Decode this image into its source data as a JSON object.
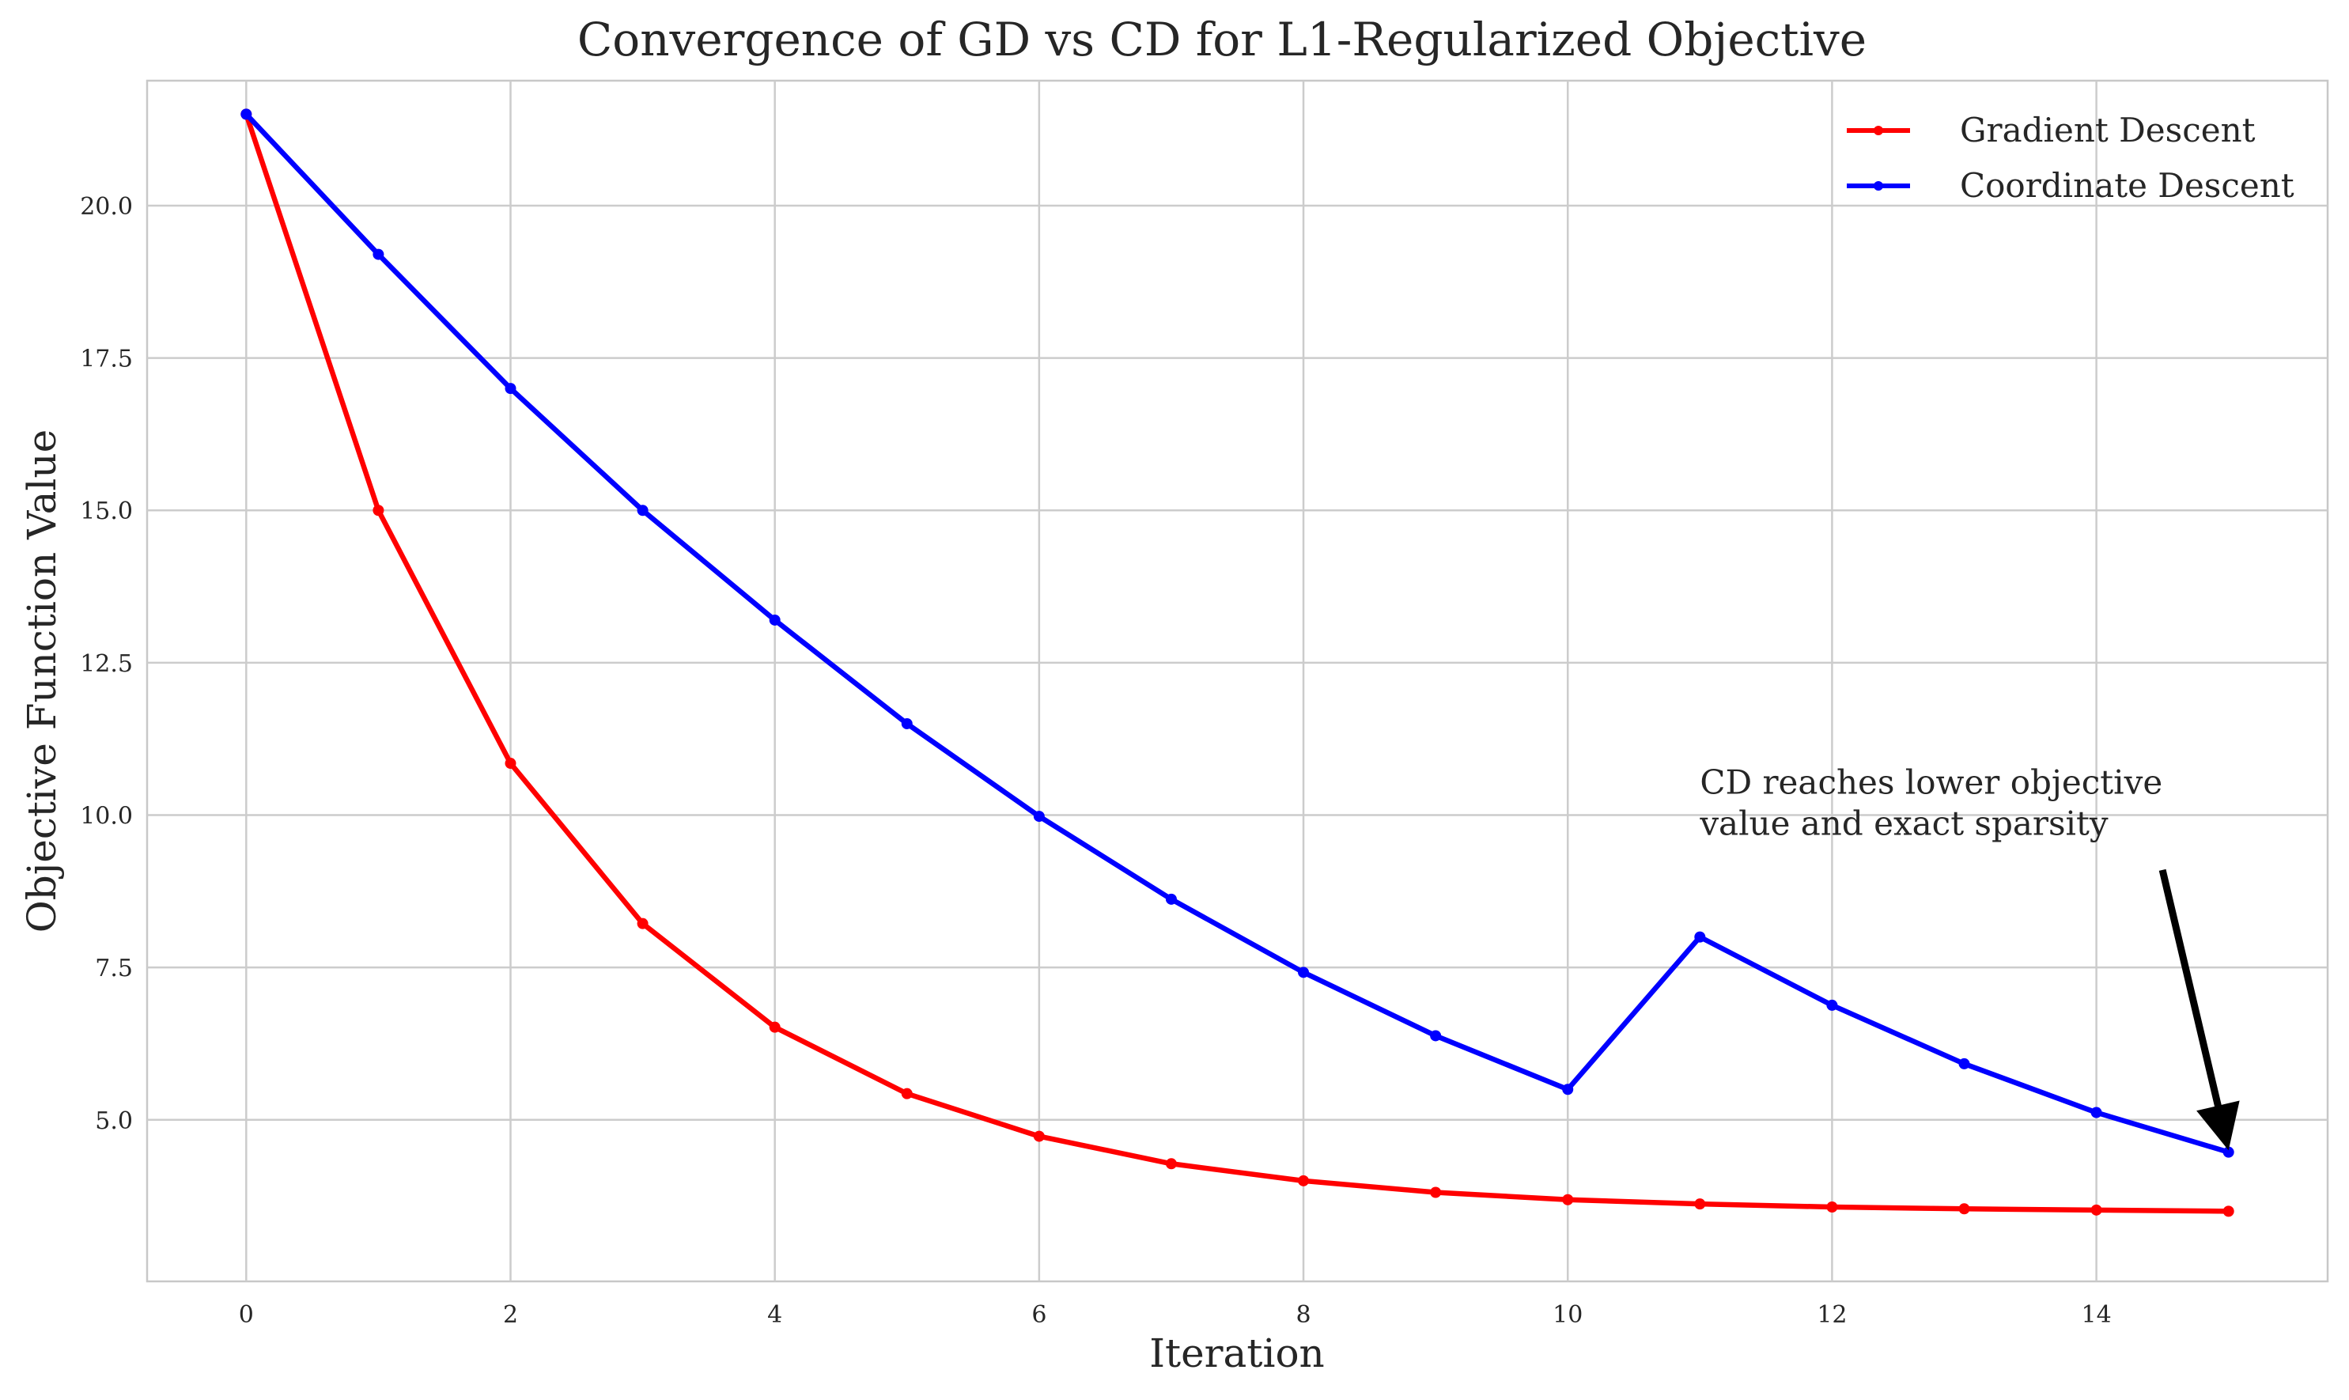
{
  "chart_data": {
    "type": "line",
    "title": "Convergence of GD vs CD for L1-Regularized Objective",
    "xlabel": "Iteration",
    "ylabel": "Objective Function Value",
    "xlim": [
      -0.75,
      15.75
    ],
    "ylim": [
      2.35,
      22.05
    ],
    "x": [
      0,
      1,
      2,
      3,
      4,
      5,
      6,
      7,
      8,
      9,
      10,
      11,
      12,
      13,
      14,
      15
    ],
    "xticks": [
      0,
      2,
      4,
      6,
      8,
      10,
      12,
      14
    ],
    "yticks": [
      5.0,
      7.5,
      10.0,
      12.5,
      15.0,
      17.5,
      20.0
    ],
    "xtick_labels": [
      "0",
      "2",
      "4",
      "6",
      "8",
      "10",
      "12",
      "14"
    ],
    "ytick_labels": [
      "5.0",
      "7.5",
      "10.0",
      "12.5",
      "15.0",
      "17.5",
      "20.0"
    ],
    "grid": true,
    "legend_position": "top-right",
    "series": [
      {
        "name": "Gradient Descent",
        "color": "#ff0000",
        "values": [
          21.5,
          15.0,
          10.85,
          8.22,
          6.52,
          5.43,
          4.73,
          4.28,
          4.0,
          3.81,
          3.69,
          3.62,
          3.57,
          3.54,
          3.52,
          3.5
        ]
      },
      {
        "name": "Coordinate Descent",
        "color": "#0000ff",
        "values": [
          21.5,
          19.2,
          17.0,
          15.0,
          13.2,
          11.5,
          9.98,
          8.62,
          7.42,
          6.38,
          5.5,
          8.0,
          6.88,
          5.92,
          5.12,
          4.47
        ]
      }
    ],
    "annotation": {
      "lines": [
        "CD reaches lower objective",
        "value and exact sparsity"
      ],
      "text_x": 11.0,
      "text_y": 10.35,
      "arrow_from": [
        14.5,
        9.1
      ],
      "arrow_to": [
        15.0,
        4.5
      ]
    }
  }
}
